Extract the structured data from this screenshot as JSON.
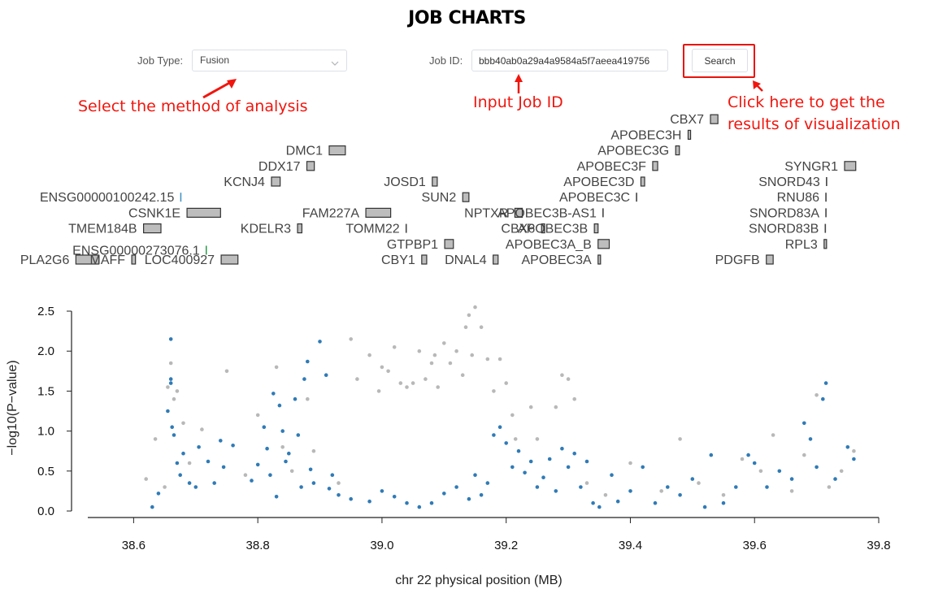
{
  "header": {
    "title": "JOB CHARTS"
  },
  "form": {
    "job_type_label": "Job Type:",
    "job_type_value": "Fusion",
    "job_id_label": "Job ID:",
    "job_id_value": "bbb40ab0a29a4a9584a5f7aeea419756",
    "search_label": "Search"
  },
  "annotations": {
    "method": "Select the method of analysis",
    "job_id": "Input Job ID",
    "visualize_line1": "Click here to get the",
    "visualize_line2": "results of visualization"
  },
  "colors": {
    "annotation": "#f0160e",
    "significant_point": "#2f7bb7",
    "other_point": "#b8b8b8",
    "gene_box": "#bdbdbd",
    "gene_blue": "#3a8fc4",
    "gene_green": "#2b9a4a"
  },
  "genes": [
    {
      "name": "PLA2G6",
      "start": 38.507,
      "end": 38.544,
      "row": 0
    },
    {
      "name": "MAFF",
      "start": 38.597,
      "end": 38.603,
      "row": 0
    },
    {
      "name": "ENSG00000273076.1",
      "start": 38.717,
      "end": 38.718,
      "row": 0.6,
      "color": "green"
    },
    {
      "name": "LOC400927",
      "start": 38.741,
      "end": 38.768,
      "row": 0
    },
    {
      "name": "TMEM184B",
      "start": 38.616,
      "end": 38.644,
      "row": 2
    },
    {
      "name": "CSNK1E",
      "start": 38.686,
      "end": 38.74,
      "row": 3
    },
    {
      "name": "ENSG00000100242.15",
      "start": 38.676,
      "end": 38.677,
      "row": 4,
      "color": "blue"
    },
    {
      "name": "KCNJ4",
      "start": 38.822,
      "end": 38.836,
      "row": 5
    },
    {
      "name": "DDX17",
      "start": 38.879,
      "end": 38.891,
      "row": 6
    },
    {
      "name": "DMC1",
      "start": 38.915,
      "end": 38.941,
      "row": 7
    },
    {
      "name": "KDELR3",
      "start": 38.864,
      "end": 38.871,
      "row": 2
    },
    {
      "name": "FAM227A",
      "start": 38.974,
      "end": 39.014,
      "row": 3
    },
    {
      "name": "TOMM22",
      "start": 39.039,
      "end": 39.041,
      "row": 2
    },
    {
      "name": "GTPBP1",
      "start": 39.101,
      "end": 39.115,
      "row": 1
    },
    {
      "name": "CBY1",
      "start": 39.064,
      "end": 39.072,
      "row": 0
    },
    {
      "name": "DNAL4",
      "start": 39.179,
      "end": 39.187,
      "row": 0
    },
    {
      "name": "JOSD1",
      "start": 39.081,
      "end": 39.089,
      "row": 5
    },
    {
      "name": "SUN2",
      "start": 39.13,
      "end": 39.14,
      "row": 4
    },
    {
      "name": "NPTXR",
      "start": 39.214,
      "end": 39.226,
      "row": 3
    },
    {
      "name": "CBX6",
      "start": 39.257,
      "end": 39.262,
      "row": 2
    },
    {
      "name": "APOBEC3A",
      "start": 39.348,
      "end": 39.352,
      "row": 0
    },
    {
      "name": "APOBEC3A_B",
      "start": 39.348,
      "end": 39.366,
      "row": 1
    },
    {
      "name": "APOBEC3B",
      "start": 39.342,
      "end": 39.348,
      "row": 2
    },
    {
      "name": "APOBEC3B-AS1",
      "start": 39.356,
      "end": 39.359,
      "row": 3
    },
    {
      "name": "APOBEC3C",
      "start": 39.41,
      "end": 39.413,
      "row": 4
    },
    {
      "name": "APOBEC3D",
      "start": 39.417,
      "end": 39.423,
      "row": 5
    },
    {
      "name": "APOBEC3F",
      "start": 39.436,
      "end": 39.444,
      "row": 6
    },
    {
      "name": "APOBEC3G",
      "start": 39.473,
      "end": 39.479,
      "row": 7
    },
    {
      "name": "APOBEC3H",
      "start": 39.493,
      "end": 39.497,
      "row": 8
    },
    {
      "name": "CBX7",
      "start": 39.529,
      "end": 39.541,
      "row": 9
    },
    {
      "name": "PDGFB",
      "start": 39.619,
      "end": 39.63,
      "row": 0
    },
    {
      "name": "RPL3",
      "start": 39.712,
      "end": 39.716,
      "row": 1
    },
    {
      "name": "SNORD83B",
      "start": 39.714,
      "end": 39.715,
      "row": 2
    },
    {
      "name": "SNORD83A",
      "start": 39.715,
      "end": 39.716,
      "row": 3
    },
    {
      "name": "RNU86",
      "start": 39.715,
      "end": 39.716,
      "row": 4
    },
    {
      "name": "SNORD43",
      "start": 39.716,
      "end": 39.717,
      "row": 5
    },
    {
      "name": "SYNGR1",
      "start": 39.745,
      "end": 39.763,
      "row": 6
    }
  ],
  "chart_data": {
    "type": "scatter",
    "xlabel": "chr 22 physical position (MB)",
    "ylabel": "−log10(P−value)",
    "xlim": [
      38.5,
      39.8
    ],
    "ylim": [
      0,
      2.5
    ],
    "xticks": [
      38.6,
      38.8,
      39.0,
      39.2,
      39.4,
      39.6,
      39.8
    ],
    "yticks": [
      0.0,
      0.5,
      1.0,
      1.5,
      2.0,
      2.5
    ],
    "xtick_labels": [
      "38.6",
      "38.8",
      "39.0",
      "39.2",
      "39.4",
      "39.6",
      "39.8"
    ],
    "ytick_labels": [
      "0.0",
      "0.5",
      "1.0",
      "1.5",
      "2.0",
      "2.5"
    ],
    "series": [
      {
        "color_key": "significant_point",
        "points": [
          [
            38.63,
            0.05
          ],
          [
            38.64,
            0.22
          ],
          [
            38.655,
            1.25
          ],
          [
            38.66,
            1.65
          ],
          [
            38.66,
            1.6
          ],
          [
            38.66,
            2.15
          ],
          [
            38.662,
            1.05
          ],
          [
            38.665,
            0.95
          ],
          [
            38.67,
            0.6
          ],
          [
            38.675,
            0.45
          ],
          [
            38.68,
            0.72
          ],
          [
            38.69,
            0.35
          ],
          [
            38.7,
            0.3
          ],
          [
            38.705,
            0.8
          ],
          [
            38.72,
            0.62
          ],
          [
            38.73,
            0.35
          ],
          [
            38.74,
            0.88
          ],
          [
            38.745,
            0.55
          ],
          [
            38.76,
            0.82
          ],
          [
            38.79,
            0.38
          ],
          [
            38.8,
            0.58
          ],
          [
            38.81,
            1.05
          ],
          [
            38.815,
            0.78
          ],
          [
            38.82,
            0.45
          ],
          [
            38.825,
            1.47
          ],
          [
            38.83,
            0.18
          ],
          [
            38.835,
            1.32
          ],
          [
            38.84,
            1.0
          ],
          [
            38.845,
            0.62
          ],
          [
            38.85,
            0.72
          ],
          [
            38.86,
            1.4
          ],
          [
            38.865,
            0.95
          ],
          [
            38.87,
            0.3
          ],
          [
            38.875,
            1.65
          ],
          [
            38.88,
            1.87
          ],
          [
            38.885,
            0.52
          ],
          [
            38.89,
            0.35
          ],
          [
            38.9,
            2.12
          ],
          [
            38.91,
            1.7
          ],
          [
            38.915,
            0.28
          ],
          [
            38.92,
            0.45
          ],
          [
            38.93,
            0.2
          ],
          [
            38.95,
            0.15
          ],
          [
            38.98,
            0.12
          ],
          [
            39.0,
            0.25
          ],
          [
            39.02,
            0.18
          ],
          [
            39.04,
            0.1
          ],
          [
            39.06,
            0.05
          ],
          [
            39.08,
            0.1
          ],
          [
            39.1,
            0.22
          ],
          [
            39.12,
            0.3
          ],
          [
            39.14,
            0.15
          ],
          [
            39.15,
            0.45
          ],
          [
            39.16,
            0.2
          ],
          [
            39.17,
            0.35
          ],
          [
            39.18,
            0.95
          ],
          [
            39.19,
            1.05
          ],
          [
            39.2,
            0.85
          ],
          [
            39.21,
            0.55
          ],
          [
            39.22,
            0.75
          ],
          [
            39.23,
            0.48
          ],
          [
            39.24,
            0.62
          ],
          [
            39.25,
            0.3
          ],
          [
            39.26,
            0.42
          ],
          [
            39.27,
            0.65
          ],
          [
            39.28,
            0.25
          ],
          [
            39.29,
            0.78
          ],
          [
            39.3,
            0.55
          ],
          [
            39.31,
            0.72
          ],
          [
            39.32,
            0.3
          ],
          [
            39.33,
            0.62
          ],
          [
            39.34,
            0.1
          ],
          [
            39.35,
            0.05
          ],
          [
            39.37,
            0.45
          ],
          [
            39.38,
            0.12
          ],
          [
            39.4,
            0.25
          ],
          [
            39.42,
            0.55
          ],
          [
            39.44,
            0.1
          ],
          [
            39.46,
            0.3
          ],
          [
            39.48,
            0.2
          ],
          [
            39.5,
            0.4
          ],
          [
            39.52,
            0.05
          ],
          [
            39.53,
            0.7
          ],
          [
            39.55,
            0.1
          ],
          [
            39.57,
            0.3
          ],
          [
            39.59,
            0.7
          ],
          [
            39.6,
            0.6
          ],
          [
            39.62,
            0.3
          ],
          [
            39.64,
            0.5
          ],
          [
            39.66,
            0.4
          ],
          [
            39.68,
            1.1
          ],
          [
            39.69,
            0.9
          ],
          [
            39.7,
            0.55
          ],
          [
            39.71,
            1.4
          ],
          [
            39.715,
            1.6
          ],
          [
            39.73,
            0.4
          ],
          [
            39.75,
            0.8
          ],
          [
            39.76,
            0.65
          ]
        ]
      },
      {
        "color_key": "other_point",
        "points": [
          [
            38.62,
            0.4
          ],
          [
            38.635,
            0.9
          ],
          [
            38.65,
            0.3
          ],
          [
            38.655,
            1.55
          ],
          [
            38.66,
            1.85
          ],
          [
            38.665,
            1.4
          ],
          [
            38.67,
            1.5
          ],
          [
            38.68,
            1.1
          ],
          [
            38.69,
            0.6
          ],
          [
            38.71,
            1.02
          ],
          [
            38.75,
            1.75
          ],
          [
            38.78,
            0.45
          ],
          [
            38.8,
            1.2
          ],
          [
            38.83,
            1.8
          ],
          [
            38.84,
            0.8
          ],
          [
            38.855,
            0.5
          ],
          [
            38.88,
            1.4
          ],
          [
            38.89,
            0.75
          ],
          [
            38.93,
            0.35
          ],
          [
            38.95,
            2.15
          ],
          [
            38.96,
            1.65
          ],
          [
            38.98,
            1.95
          ],
          [
            38.995,
            1.5
          ],
          [
            39.0,
            1.8
          ],
          [
            39.01,
            1.75
          ],
          [
            39.02,
            2.05
          ],
          [
            39.03,
            1.6
          ],
          [
            39.04,
            1.55
          ],
          [
            39.05,
            1.6
          ],
          [
            39.06,
            2.0
          ],
          [
            39.07,
            1.65
          ],
          [
            39.08,
            1.85
          ],
          [
            39.085,
            1.95
          ],
          [
            39.09,
            1.55
          ],
          [
            39.1,
            2.1
          ],
          [
            39.11,
            1.85
          ],
          [
            39.12,
            2.0
          ],
          [
            39.13,
            1.7
          ],
          [
            39.135,
            2.3
          ],
          [
            39.14,
            2.45
          ],
          [
            39.145,
            1.95
          ],
          [
            39.15,
            2.55
          ],
          [
            39.16,
            2.3
          ],
          [
            39.17,
            1.9
          ],
          [
            39.18,
            1.5
          ],
          [
            39.19,
            1.9
          ],
          [
            39.2,
            1.6
          ],
          [
            39.21,
            1.2
          ],
          [
            39.215,
            0.9
          ],
          [
            39.24,
            1.3
          ],
          [
            39.25,
            0.9
          ],
          [
            39.28,
            1.3
          ],
          [
            39.29,
            1.7
          ],
          [
            39.3,
            1.65
          ],
          [
            39.31,
            1.4
          ],
          [
            39.33,
            0.35
          ],
          [
            39.36,
            0.2
          ],
          [
            39.4,
            0.6
          ],
          [
            39.45,
            0.25
          ],
          [
            39.48,
            0.9
          ],
          [
            39.51,
            0.35
          ],
          [
            39.55,
            0.2
          ],
          [
            39.58,
            0.65
          ],
          [
            39.61,
            0.5
          ],
          [
            39.63,
            0.95
          ],
          [
            39.66,
            0.25
          ],
          [
            39.68,
            0.7
          ],
          [
            39.7,
            1.45
          ],
          [
            39.72,
            0.3
          ],
          [
            39.74,
            0.5
          ],
          [
            39.76,
            0.75
          ]
        ]
      }
    ]
  }
}
